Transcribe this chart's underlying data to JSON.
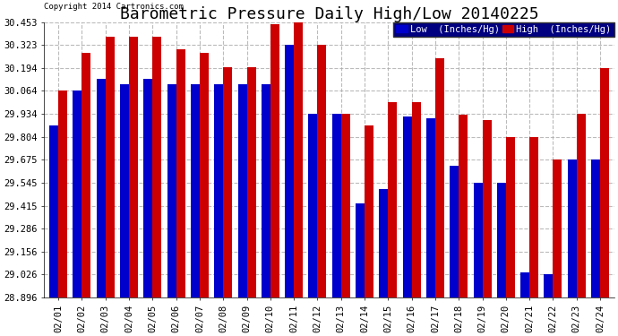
{
  "title": "Barometric Pressure Daily High/Low 20140225",
  "copyright": "Copyright 2014 Cartronics.com",
  "legend_low": "Low  (Inches/Hg)",
  "legend_high": "High  (Inches/Hg)",
  "dates": [
    "02/01",
    "02/02",
    "02/03",
    "02/04",
    "02/05",
    "02/06",
    "02/07",
    "02/08",
    "02/09",
    "02/10",
    "02/11",
    "02/12",
    "02/13",
    "02/14",
    "02/15",
    "02/16",
    "02/17",
    "02/18",
    "02/19",
    "02/20",
    "02/21",
    "02/22",
    "02/23",
    "02/24"
  ],
  "low_vals": [
    29.87,
    30.064,
    30.13,
    30.1,
    30.13,
    30.1,
    30.1,
    30.1,
    30.1,
    30.1,
    30.323,
    29.934,
    29.934,
    29.43,
    29.51,
    29.92,
    29.91,
    29.64,
    29.545,
    29.545,
    29.04,
    29.026,
    29.675,
    29.675
  ],
  "high_vals": [
    30.064,
    30.28,
    30.37,
    30.37,
    30.37,
    30.3,
    30.28,
    30.2,
    30.2,
    30.44,
    30.453,
    30.323,
    29.934,
    29.87,
    30.0,
    30.0,
    30.25,
    29.93,
    29.9,
    29.804,
    29.804,
    29.675,
    29.934,
    30.194
  ],
  "ymin": 28.896,
  "ymax": 30.453,
  "yticks": [
    28.896,
    29.026,
    29.156,
    29.286,
    29.415,
    29.545,
    29.675,
    29.804,
    29.934,
    30.064,
    30.194,
    30.323,
    30.453
  ],
  "low_color": "#0000cc",
  "high_color": "#cc0000",
  "bg_color": "#ffffff",
  "grid_color": "#aaaaaa",
  "bar_width": 0.38,
  "title_fontsize": 13,
  "tick_fontsize": 7.5,
  "legend_fontsize": 8,
  "legend_bg": "#000080"
}
